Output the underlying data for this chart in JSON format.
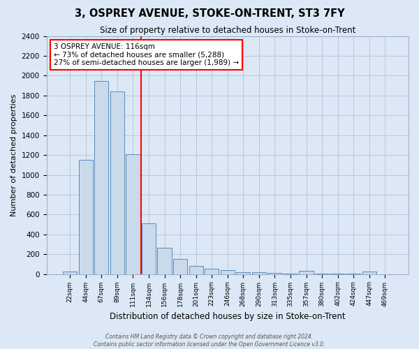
{
  "title": "3, OSPREY AVENUE, STOKE-ON-TRENT, ST3 7FY",
  "subtitle": "Size of property relative to detached houses in Stoke-on-Trent",
  "xlabel": "Distribution of detached houses by size in Stoke-on-Trent",
  "ylabel": "Number of detached properties",
  "bin_labels": [
    "22sqm",
    "44sqm",
    "67sqm",
    "89sqm",
    "111sqm",
    "134sqm",
    "156sqm",
    "178sqm",
    "201sqm",
    "223sqm",
    "246sqm",
    "268sqm",
    "290sqm",
    "313sqm",
    "335sqm",
    "357sqm",
    "380sqm",
    "402sqm",
    "424sqm",
    "447sqm",
    "469sqm"
  ],
  "bar_values": [
    25,
    1150,
    1950,
    1840,
    1210,
    510,
    265,
    155,
    80,
    50,
    40,
    18,
    18,
    10,
    5,
    35,
    5,
    5,
    5,
    25,
    0
  ],
  "bar_color": "#c9daea",
  "bar_edge_color": "#5a8ab8",
  "grid_color": "#b8c8de",
  "background_color": "#dce8f5",
  "red_line_x": 4.5,
  "annotation_text": "3 OSPREY AVENUE: 116sqm\n← 73% of detached houses are smaller (5,288)\n27% of semi-detached houses are larger (1,989) →",
  "annotation_box_color": "white",
  "annotation_box_edgecolor": "red",
  "ylim": [
    0,
    2400
  ],
  "yticks": [
    0,
    200,
    400,
    600,
    800,
    1000,
    1200,
    1400,
    1600,
    1800,
    2000,
    2200,
    2400
  ],
  "footer_line1": "Contains HM Land Registry data © Crown copyright and database right 2024.",
  "footer_line2": "Contains public sector information licensed under the Open Government Licence v3.0."
}
